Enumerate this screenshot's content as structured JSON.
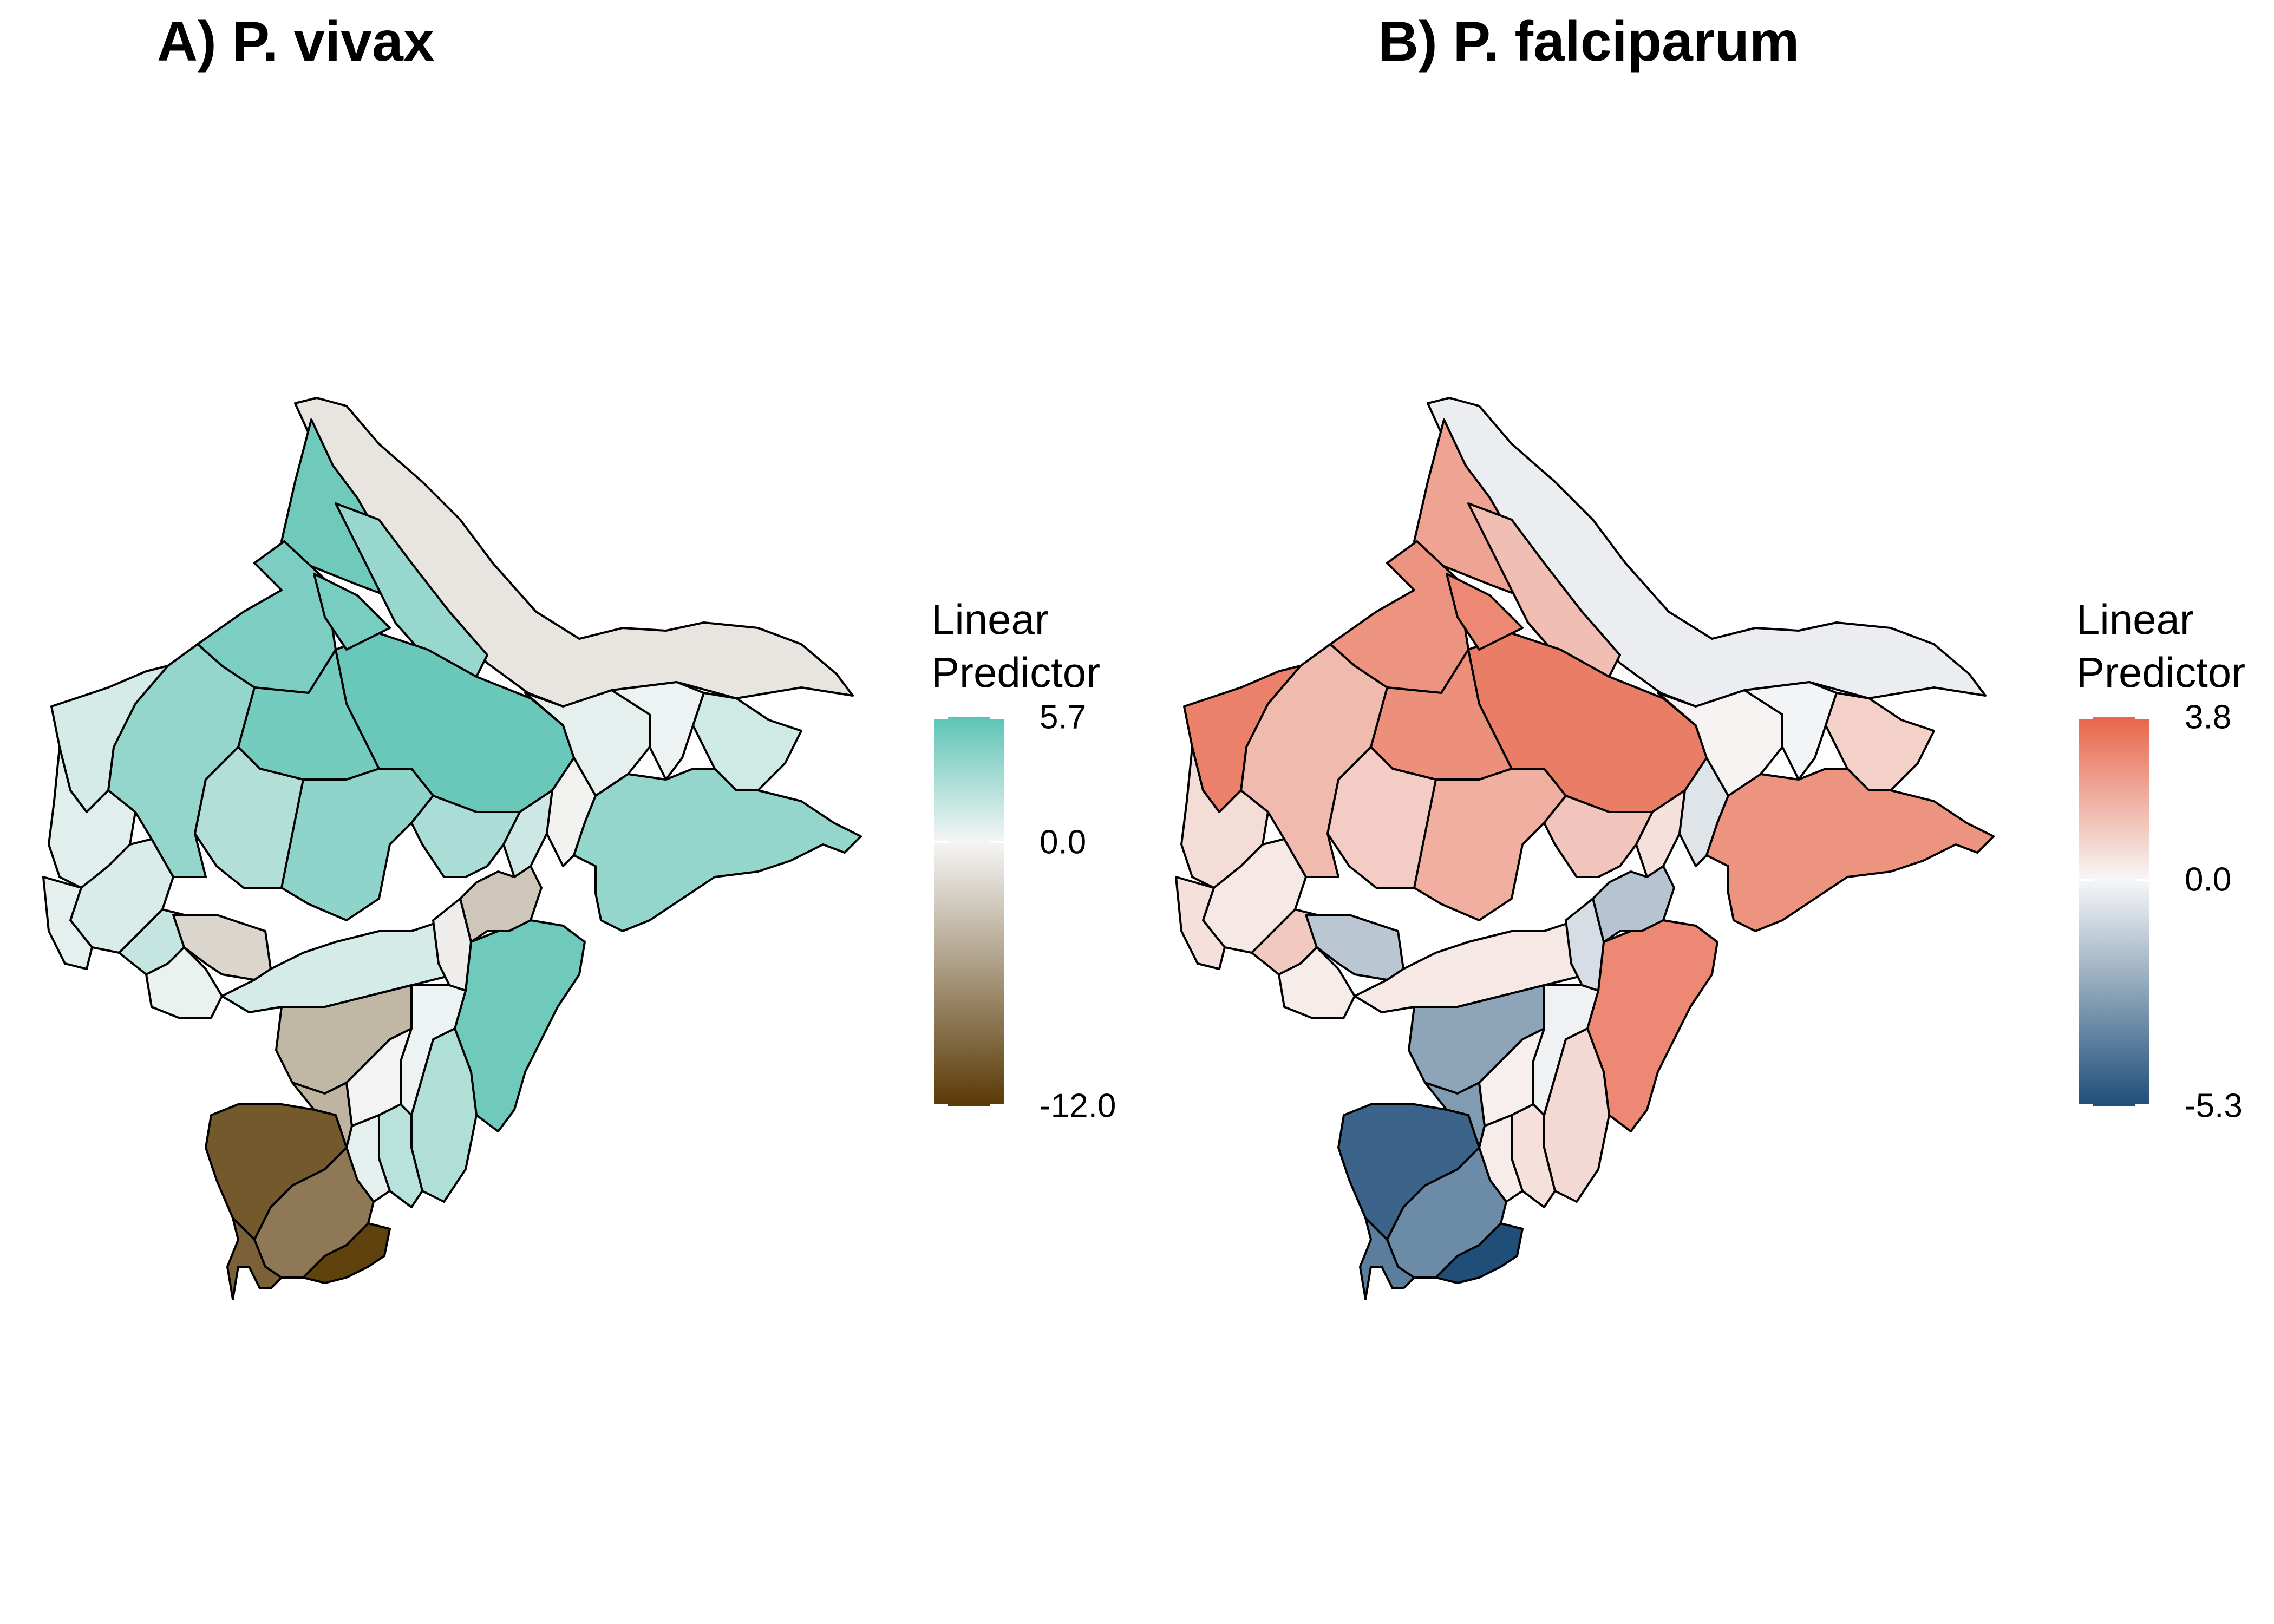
{
  "panels": [
    {
      "id": "a",
      "title": "A) P. vivax",
      "legend": {
        "title_line1": "Linear",
        "title_line2": "Predictor",
        "max": 5.7,
        "min": -12.0,
        "max_label": "5.7",
        "mid_label": "0.0",
        "min_label": "-12.0",
        "colors": {
          "high": "#5CC4B4",
          "mid": "#F5F5F5",
          "low": "#5A3A05"
        }
      }
    },
    {
      "id": "b",
      "title": "B) P. falciparum",
      "legend": {
        "title_line1": "Linear",
        "title_line2": "Predictor",
        "max": 3.8,
        "min": -5.3,
        "max_label": "3.8",
        "mid_label": "0.0",
        "min_label": "-5.3",
        "colors": {
          "high": "#E8664A",
          "mid": "#F7F7F7",
          "low": "#1F4E79"
        }
      }
    }
  ],
  "district_values": {
    "a": {
      "north_border": -1.0,
      "north_a": 5.0,
      "north_b": 3.5,
      "central_1": 4.5,
      "central_2": 4.8,
      "central_3": 5.2,
      "central_4": 4.7,
      "central_5": 3.6,
      "central_6": 2.5,
      "central_7": 3.8,
      "central_8": 2.8,
      "central_9": 1.5,
      "west_1": 1.2,
      "west_2": 0.8,
      "west_3": 1.0,
      "west_4": 0.6,
      "west_5": 1.8,
      "west_6": 0.4,
      "sw_small": -2.0,
      "south_mid": 1.2,
      "east_1": 0.6,
      "east_2": 0.3,
      "east_3": -0.2,
      "east_4": 1.4,
      "east_strip": 3.6,
      "se_1": 5.0,
      "mid_strip": -3.0,
      "mid_small": -0.5,
      "s_1": -4.0,
      "s_2": -4.2,
      "s_3": 0.3,
      "s_4": -0.1,
      "s_5": 2.6,
      "s_6": 2.2,
      "s_7": 0.6,
      "ss_1": -10.0,
      "ss_2": -8.0,
      "ss_3": -11.5,
      "ss_4": -9.5
    },
    "b": {
      "north_border": -0.3,
      "north_a": 2.2,
      "north_b": 1.5,
      "central_1": 2.6,
      "central_2": 2.7,
      "central_3": 3.2,
      "central_4": 2.9,
      "central_5": 1.6,
      "central_6": 1.1,
      "central_7": 1.9,
      "central_8": 1.3,
      "central_9": 0.6,
      "west_1": 3.1,
      "west_2": 0.7,
      "west_3": 0.4,
      "west_4": 0.6,
      "west_5": 1.2,
      "west_6": 0.3,
      "sw_small": -1.5,
      "south_mid": 0.4,
      "east_1": 0.1,
      "east_2": -0.1,
      "east_3": -0.6,
      "east_4": 1.0,
      "east_strip": 2.6,
      "se_1": 2.9,
      "mid_strip": -1.6,
      "mid_small": -0.8,
      "s_1": -2.6,
      "s_2": -2.9,
      "s_3": -0.2,
      "s_4": 0.2,
      "s_5": 0.8,
      "s_6": 0.6,
      "s_7": 0.3,
      "ss_1": -4.6,
      "ss_2": -3.4,
      "ss_3": -5.3,
      "ss_4": -3.8
    }
  }
}
